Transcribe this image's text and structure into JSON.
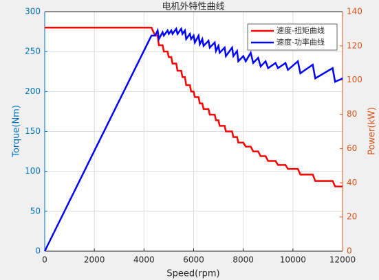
{
  "chart_data": {
    "type": "line",
    "title": "电机外特性曲线",
    "x_label": "Speed(rpm)",
    "y_label": "Torque(Nm)",
    "y2_label": "Power(kW)",
    "x": [
      0,
      4300,
      4450,
      4550,
      4600,
      4750,
      4800,
      4950,
      5000,
      5100,
      5150,
      5300,
      5350,
      5500,
      5550,
      5650,
      5700,
      5850,
      5900,
      6000,
      6050,
      6200,
      6250,
      6350,
      6400,
      6600,
      6650,
      6850,
      6900,
      7000,
      7050,
      7250,
      7300,
      7550,
      7600,
      7750,
      7800,
      8000,
      8100,
      8300,
      8400,
      8600,
      8700,
      8900,
      9000,
      9300,
      9400,
      9700,
      9800,
      10200,
      10300,
      10800,
      10900,
      11600,
      11700,
      12000
    ],
    "series": [
      {
        "name": "速度-扭矩曲线",
        "color": "#ff0000",
        "axis": "y",
        "values": [
          280,
          280,
          270,
          270,
          258,
          258,
          250,
          250,
          243,
          243,
          235,
          235,
          226,
          226,
          218,
          218,
          208,
          208,
          200,
          200,
          193,
          193,
          185,
          185,
          178,
          178,
          171,
          171,
          164,
          164,
          157,
          157,
          150,
          150,
          143,
          143,
          136,
          136,
          131,
          131,
          125,
          125,
          119,
          119,
          113,
          113,
          108,
          108,
          103,
          103,
          96,
          96,
          88,
          88,
          81,
          81
        ]
      },
      {
        "name": "速度-功率曲线",
        "color": "#0000ff",
        "axis": "y2",
        "values": [
          0,
          126,
          126,
          129,
          124,
          128,
          126,
          129,
          127,
          129,
          127,
          130,
          127,
          130,
          127,
          129,
          124,
          127,
          124,
          126,
          122,
          126,
          121,
          124,
          120,
          123,
          119,
          122,
          117,
          120,
          116,
          119,
          114,
          119,
          114,
          117,
          111,
          114,
          111,
          116,
          110,
          113,
          108,
          111,
          107,
          110,
          107,
          110,
          106,
          111,
          104,
          109,
          101,
          107,
          99,
          101
        ]
      }
    ],
    "xlim": [
      0,
      12000
    ],
    "xticks": [
      0,
      2000,
      4000,
      6000,
      8000,
      10000,
      12000
    ],
    "ylim": [
      0,
      300
    ],
    "yticks": [
      0,
      50,
      100,
      150,
      200,
      250,
      300
    ],
    "y2lim": [
      0,
      140
    ],
    "y2ticks": [
      0,
      20,
      40,
      60,
      80,
      100,
      120,
      140
    ],
    "y_color": "#0072bd",
    "y2_color": "#d95319",
    "grid": true,
    "legend": "top-right"
  }
}
